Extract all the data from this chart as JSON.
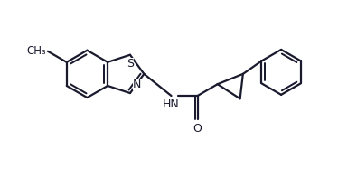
{
  "background_color": "#ffffff",
  "line_color": "#1a1a2e",
  "line_width": 1.6,
  "font_size": 9,
  "figsize": [
    3.74,
    1.96
  ],
  "dpi": 100,
  "xlim": [
    0.0,
    7.5
  ],
  "ylim": [
    -1.0,
    3.8
  ]
}
